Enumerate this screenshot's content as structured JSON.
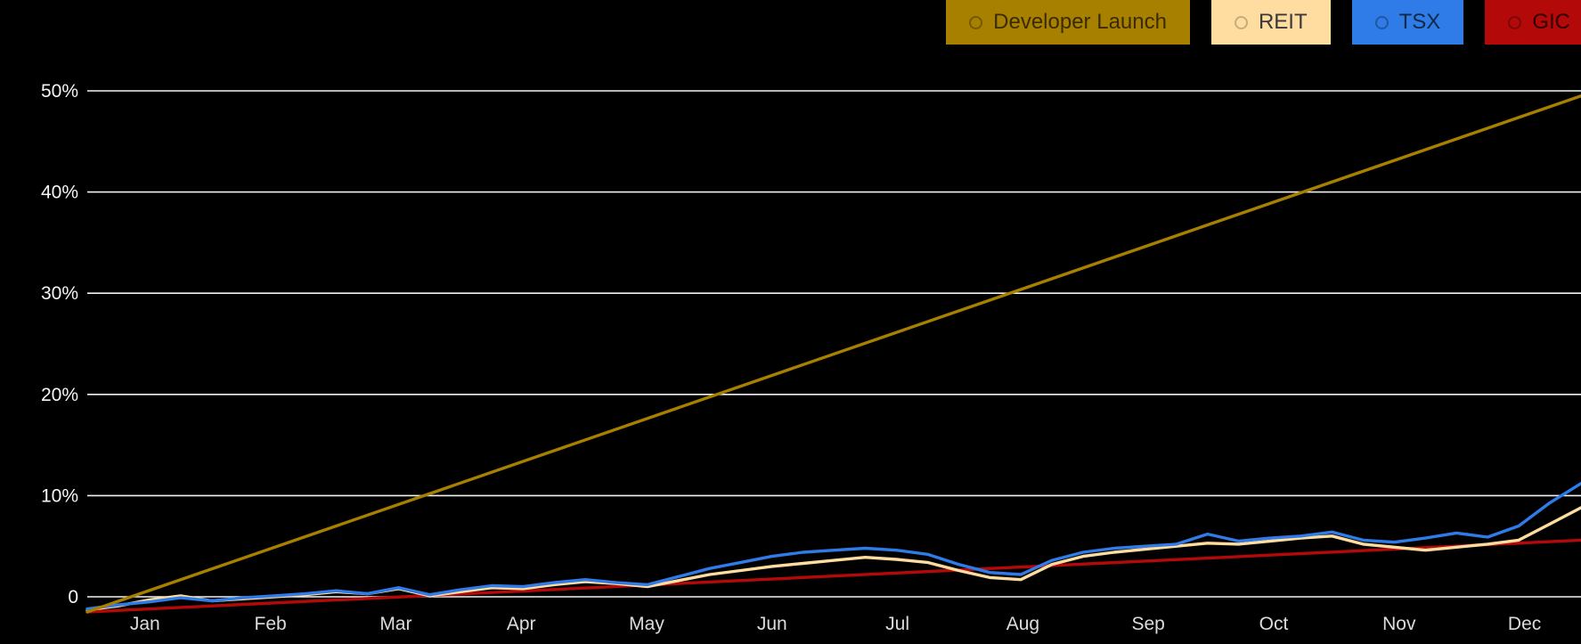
{
  "colors": {
    "background": "#000000",
    "gridline": "#f2f2f2",
    "y_tick_label": "#f5f5f5",
    "x_tick_label": "#dcdcdc"
  },
  "legend": {
    "position": "top-right",
    "items": [
      {
        "label": "Developer Launch",
        "bg": "#A88000",
        "text_color": "#3A2B00",
        "marker_icon": "circle-icon",
        "marker_ring": "rgba(0,0,0,0.30)"
      },
      {
        "label": "REIT",
        "bg": "#FFDCA0",
        "text_color": "#3A3A3A",
        "marker_icon": "circle-icon",
        "marker_ring": "rgba(0,0,0,0.22)"
      },
      {
        "label": "TSX",
        "bg": "#2F7BE8",
        "text_color": "#102A46",
        "marker_icon": "circle-icon",
        "marker_ring": "rgba(0,0,0,0.30)"
      },
      {
        "label": "GIC",
        "bg": "#B30909",
        "text_color": "#2E0000",
        "marker_icon": "circle-icon",
        "marker_ring": "rgba(0,0,0,0.30)"
      }
    ]
  },
  "chart_data": {
    "type": "line",
    "title": "",
    "xlabel": "",
    "ylabel": "",
    "grid": "horizontal-only",
    "gridline_color": "#f2f2f2",
    "background": "#000000",
    "legend_position": "top-right",
    "x_axis": {
      "tick_labels": [
        "Jan",
        "Feb",
        "Mar",
        "Apr",
        "May",
        "Jun",
        "Jul",
        "Aug",
        "Sep",
        "Oct",
        "Nov",
        "Dec"
      ],
      "range_months": [
        -0.46,
        11.45
      ]
    },
    "y_axis": {
      "ticks": [
        0,
        10,
        20,
        30,
        40,
        50
      ],
      "tick_labels": [
        "0",
        "10%",
        "20%",
        "30%",
        "40%",
        "50%"
      ],
      "unit": "%",
      "ylim": [
        -2,
        52
      ]
    },
    "series": [
      {
        "name": "GIC",
        "color": "#B30909",
        "shape": "linear",
        "x": [
          -0.46,
          11.45
        ],
        "values": [
          -1.5,
          5.6
        ]
      },
      {
        "name": "REIT",
        "color": "#FFDCA0",
        "shape": "weekly-points-evenly-spaced",
        "values": [
          -1.3,
          -0.9,
          -0.3,
          0.1,
          -0.4,
          -0.2,
          0.0,
          0.2,
          0.5,
          0.3,
          0.8,
          0.1,
          0.5,
          0.9,
          0.8,
          1.2,
          1.5,
          1.3,
          1.0,
          1.6,
          2.2,
          2.6,
          3.0,
          3.3,
          3.6,
          3.9,
          3.7,
          3.4,
          2.6,
          1.9,
          1.7,
          3.2,
          4.0,
          4.4,
          4.7,
          5.0,
          5.3,
          5.2,
          5.5,
          5.8,
          6.0,
          5.2,
          4.9,
          4.6,
          4.9,
          5.2,
          5.6,
          7.2,
          8.8
        ]
      },
      {
        "name": "TSX",
        "color": "#2F7BE8",
        "shape": "weekly-points-evenly-spaced",
        "values": [
          -1.2,
          -0.8,
          -0.5,
          -0.1,
          -0.4,
          -0.1,
          0.1,
          0.3,
          0.6,
          0.3,
          0.9,
          0.2,
          0.7,
          1.1,
          1.0,
          1.4,
          1.7,
          1.4,
          1.2,
          2.0,
          2.8,
          3.4,
          4.0,
          4.4,
          4.6,
          4.8,
          4.6,
          4.2,
          3.2,
          2.4,
          2.2,
          3.6,
          4.4,
          4.8,
          5.0,
          5.2,
          6.2,
          5.5,
          5.8,
          6.0,
          6.4,
          5.6,
          5.4,
          5.8,
          6.3,
          5.9,
          7.0,
          9.3,
          11.2
        ]
      },
      {
        "name": "Developer Launch",
        "color": "#A88000",
        "shape": "linear",
        "x": [
          -0.46,
          11.45
        ],
        "values": [
          -1.5,
          49.5
        ]
      }
    ]
  }
}
